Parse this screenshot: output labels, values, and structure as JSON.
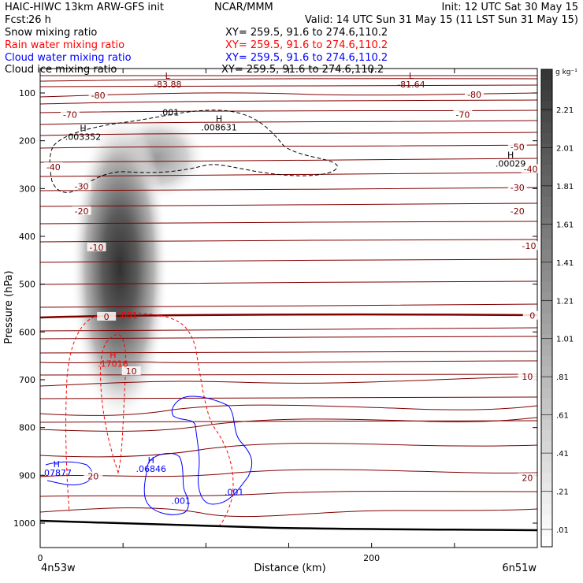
{
  "header": {
    "title_left": "HAIC-HIWC 13km ARW-GFS init",
    "title_center": "NCAR/MMM",
    "init": "Init: 12 UTC Sat 30 May 15",
    "fcst": "Fcst:",
    "fcst_value": "26 h",
    "valid": "Valid: 14 UTC Sun 31 May 15 (11 LST Sun 31 May 15)",
    "fields": [
      {
        "name": "Snow mixing ratio",
        "xy": "XY= 259.5, 91.6 to 274.6,110.2",
        "color": "#000000"
      },
      {
        "name": "Rain water mixing ratio",
        "xy": "XY= 259.5, 91.6 to 274.6,110.2",
        "color": "#ff0000"
      },
      {
        "name": "Cloud water mixing ratio",
        "xy": "XY= 259.5, 91.6 to 274.6,110.2",
        "color": "#0000ff"
      },
      {
        "name": "Cloud ice mixing ratio",
        "xy": "XY= 259.5, 91.6 to 274.6,110.2",
        "color": "#000000"
      }
    ]
  },
  "chart_data": {
    "type": "heatmap",
    "xlabel": "Distance (km)",
    "ylabel": "Pressure (hPa)",
    "xlim": [
      0,
      300
    ],
    "ylim": [
      1050,
      50
    ],
    "x_ticks": [
      "0",
      "200"
    ],
    "y_ticks": [
      "100",
      "200",
      "300",
      "400",
      "500",
      "600",
      "700",
      "800",
      "900",
      "1000"
    ],
    "x_end_labels": {
      "left": "4n53w",
      "right": "6n51w"
    },
    "colorbar": {
      "unit": "g kg⁻¹",
      "ticks": [
        "2.21",
        "2.01",
        "1.81",
        "1.61",
        "1.41",
        "1.21",
        "1.01",
        ".81",
        ".61",
        ".41",
        ".21",
        ".01"
      ]
    },
    "temperature_labels": [
      {
        "text": "-80",
        "x": 35,
        "p": 105
      },
      {
        "text": "-80",
        "x": 262,
        "p": 103
      },
      {
        "text": "-70",
        "x": 18,
        "p": 145
      },
      {
        "text": "-70",
        "x": 255,
        "p": 145
      },
      {
        "text": "-50",
        "x": 288,
        "p": 213
      },
      {
        "text": "-40",
        "x": 8,
        "p": 255
      },
      {
        "text": "-40",
        "x": 296,
        "p": 259
      },
      {
        "text": "-30",
        "x": 25,
        "p": 295
      },
      {
        "text": "-30",
        "x": 288,
        "p": 298
      },
      {
        "text": "-20",
        "x": 25,
        "p": 347
      },
      {
        "text": "-20",
        "x": 288,
        "p": 347
      },
      {
        "text": "-10",
        "x": 34,
        "p": 423
      },
      {
        "text": "-10",
        "x": 295,
        "p": 420
      },
      {
        "text": "0",
        "x": 40,
        "p": 568
      },
      {
        "text": "0",
        "x": 297,
        "p": 566
      },
      {
        "text": "10",
        "x": 55,
        "p": 682
      },
      {
        "text": "10",
        "x": 294,
        "p": 693
      },
      {
        "text": "20",
        "x": 32,
        "p": 902
      },
      {
        "text": "20",
        "x": 294,
        "p": 905
      }
    ],
    "extrema": [
      {
        "mark": "L",
        "value": "-83.88",
        "x": 75,
        "p": 70,
        "color": "#800000"
      },
      {
        "mark": "L",
        "value": "-81.64",
        "x": 222,
        "p": 70,
        "color": "#800000"
      },
      {
        "mark": "H",
        "value": ".003352",
        "x": 24,
        "p": 180,
        "color": "#000000"
      },
      {
        "mark": "H",
        "value": ".008631",
        "x": 106,
        "p": 160,
        "color": "#000000"
      },
      {
        "mark": "H",
        "value": ".00029",
        "x": 282,
        "p": 236,
        "color": "#000000"
      },
      {
        "mark": "H",
        "value": ".17016",
        "x": 42,
        "p": 655,
        "color": "#ff0000"
      },
      {
        "mark": "H",
        "value": ".07877",
        "x": 8,
        "p": 883,
        "color": "#0000ff"
      },
      {
        "mark": "H",
        "value": ".06846",
        "x": 65,
        "p": 875,
        "color": "#0000ff"
      }
    ],
    "contour_labels": [
      {
        "text": ".001",
        "x": 78,
        "p": 140,
        "color": "#000000"
      },
      {
        "text": ".001",
        "x": 53,
        "p": 565,
        "color": "#ff0000"
      },
      {
        "text": ".001",
        "x": 85,
        "p": 953,
        "color": "#0000ff"
      },
      {
        "text": ".001",
        "x": 117,
        "p": 935,
        "color": "#0000ff"
      }
    ]
  }
}
